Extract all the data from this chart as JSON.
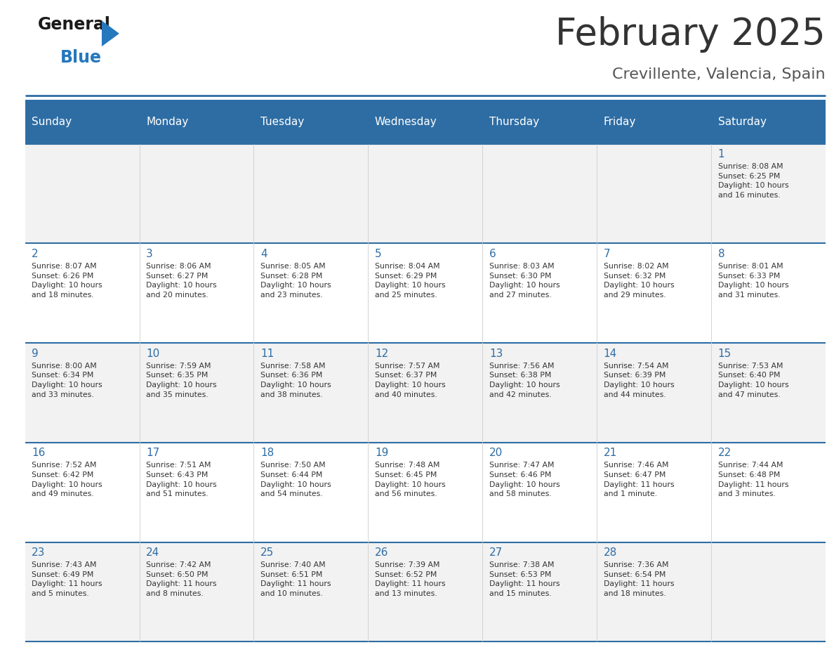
{
  "title": "February 2025",
  "subtitle": "Crevillente, Valencia, Spain",
  "header_bg": "#2E6DA4",
  "header_text_color": "#FFFFFF",
  "cell_bg_odd": "#F2F2F2",
  "cell_bg_even": "#FFFFFF",
  "day_headers": [
    "Sunday",
    "Monday",
    "Tuesday",
    "Wednesday",
    "Thursday",
    "Friday",
    "Saturday"
  ],
  "title_color": "#333333",
  "subtitle_color": "#555555",
  "day_num_color": "#2E6DA4",
  "info_color": "#333333",
  "divider_color": "#2E6DA4",
  "logo_general_color": "#1a1a1a",
  "logo_blue_color": "#2478BE",
  "calendar": [
    [
      null,
      null,
      null,
      null,
      null,
      null,
      {
        "day": 1,
        "sunrise": "8:08 AM",
        "sunset": "6:25 PM",
        "daylight_hours": 10,
        "daylight_minutes": 16
      }
    ],
    [
      {
        "day": 2,
        "sunrise": "8:07 AM",
        "sunset": "6:26 PM",
        "daylight_hours": 10,
        "daylight_minutes": 18
      },
      {
        "day": 3,
        "sunrise": "8:06 AM",
        "sunset": "6:27 PM",
        "daylight_hours": 10,
        "daylight_minutes": 20
      },
      {
        "day": 4,
        "sunrise": "8:05 AM",
        "sunset": "6:28 PM",
        "daylight_hours": 10,
        "daylight_minutes": 23
      },
      {
        "day": 5,
        "sunrise": "8:04 AM",
        "sunset": "6:29 PM",
        "daylight_hours": 10,
        "daylight_minutes": 25
      },
      {
        "day": 6,
        "sunrise": "8:03 AM",
        "sunset": "6:30 PM",
        "daylight_hours": 10,
        "daylight_minutes": 27
      },
      {
        "day": 7,
        "sunrise": "8:02 AM",
        "sunset": "6:32 PM",
        "daylight_hours": 10,
        "daylight_minutes": 29
      },
      {
        "day": 8,
        "sunrise": "8:01 AM",
        "sunset": "6:33 PM",
        "daylight_hours": 10,
        "daylight_minutes": 31
      }
    ],
    [
      {
        "day": 9,
        "sunrise": "8:00 AM",
        "sunset": "6:34 PM",
        "daylight_hours": 10,
        "daylight_minutes": 33
      },
      {
        "day": 10,
        "sunrise": "7:59 AM",
        "sunset": "6:35 PM",
        "daylight_hours": 10,
        "daylight_minutes": 35
      },
      {
        "day": 11,
        "sunrise": "7:58 AM",
        "sunset": "6:36 PM",
        "daylight_hours": 10,
        "daylight_minutes": 38
      },
      {
        "day": 12,
        "sunrise": "7:57 AM",
        "sunset": "6:37 PM",
        "daylight_hours": 10,
        "daylight_minutes": 40
      },
      {
        "day": 13,
        "sunrise": "7:56 AM",
        "sunset": "6:38 PM",
        "daylight_hours": 10,
        "daylight_minutes": 42
      },
      {
        "day": 14,
        "sunrise": "7:54 AM",
        "sunset": "6:39 PM",
        "daylight_hours": 10,
        "daylight_minutes": 44
      },
      {
        "day": 15,
        "sunrise": "7:53 AM",
        "sunset": "6:40 PM",
        "daylight_hours": 10,
        "daylight_minutes": 47
      }
    ],
    [
      {
        "day": 16,
        "sunrise": "7:52 AM",
        "sunset": "6:42 PM",
        "daylight_hours": 10,
        "daylight_minutes": 49
      },
      {
        "day": 17,
        "sunrise": "7:51 AM",
        "sunset": "6:43 PM",
        "daylight_hours": 10,
        "daylight_minutes": 51
      },
      {
        "day": 18,
        "sunrise": "7:50 AM",
        "sunset": "6:44 PM",
        "daylight_hours": 10,
        "daylight_minutes": 54
      },
      {
        "day": 19,
        "sunrise": "7:48 AM",
        "sunset": "6:45 PM",
        "daylight_hours": 10,
        "daylight_minutes": 56
      },
      {
        "day": 20,
        "sunrise": "7:47 AM",
        "sunset": "6:46 PM",
        "daylight_hours": 10,
        "daylight_minutes": 58
      },
      {
        "day": 21,
        "sunrise": "7:46 AM",
        "sunset": "6:47 PM",
        "daylight_hours": 11,
        "daylight_minutes": 1
      },
      {
        "day": 22,
        "sunrise": "7:44 AM",
        "sunset": "6:48 PM",
        "daylight_hours": 11,
        "daylight_minutes": 3
      }
    ],
    [
      {
        "day": 23,
        "sunrise": "7:43 AM",
        "sunset": "6:49 PM",
        "daylight_hours": 11,
        "daylight_minutes": 5
      },
      {
        "day": 24,
        "sunrise": "7:42 AM",
        "sunset": "6:50 PM",
        "daylight_hours": 11,
        "daylight_minutes": 8
      },
      {
        "day": 25,
        "sunrise": "7:40 AM",
        "sunset": "6:51 PM",
        "daylight_hours": 11,
        "daylight_minutes": 10
      },
      {
        "day": 26,
        "sunrise": "7:39 AM",
        "sunset": "6:52 PM",
        "daylight_hours": 11,
        "daylight_minutes": 13
      },
      {
        "day": 27,
        "sunrise": "7:38 AM",
        "sunset": "6:53 PM",
        "daylight_hours": 11,
        "daylight_minutes": 15
      },
      {
        "day": 28,
        "sunrise": "7:36 AM",
        "sunset": "6:54 PM",
        "daylight_hours": 11,
        "daylight_minutes": 18
      },
      null
    ]
  ]
}
